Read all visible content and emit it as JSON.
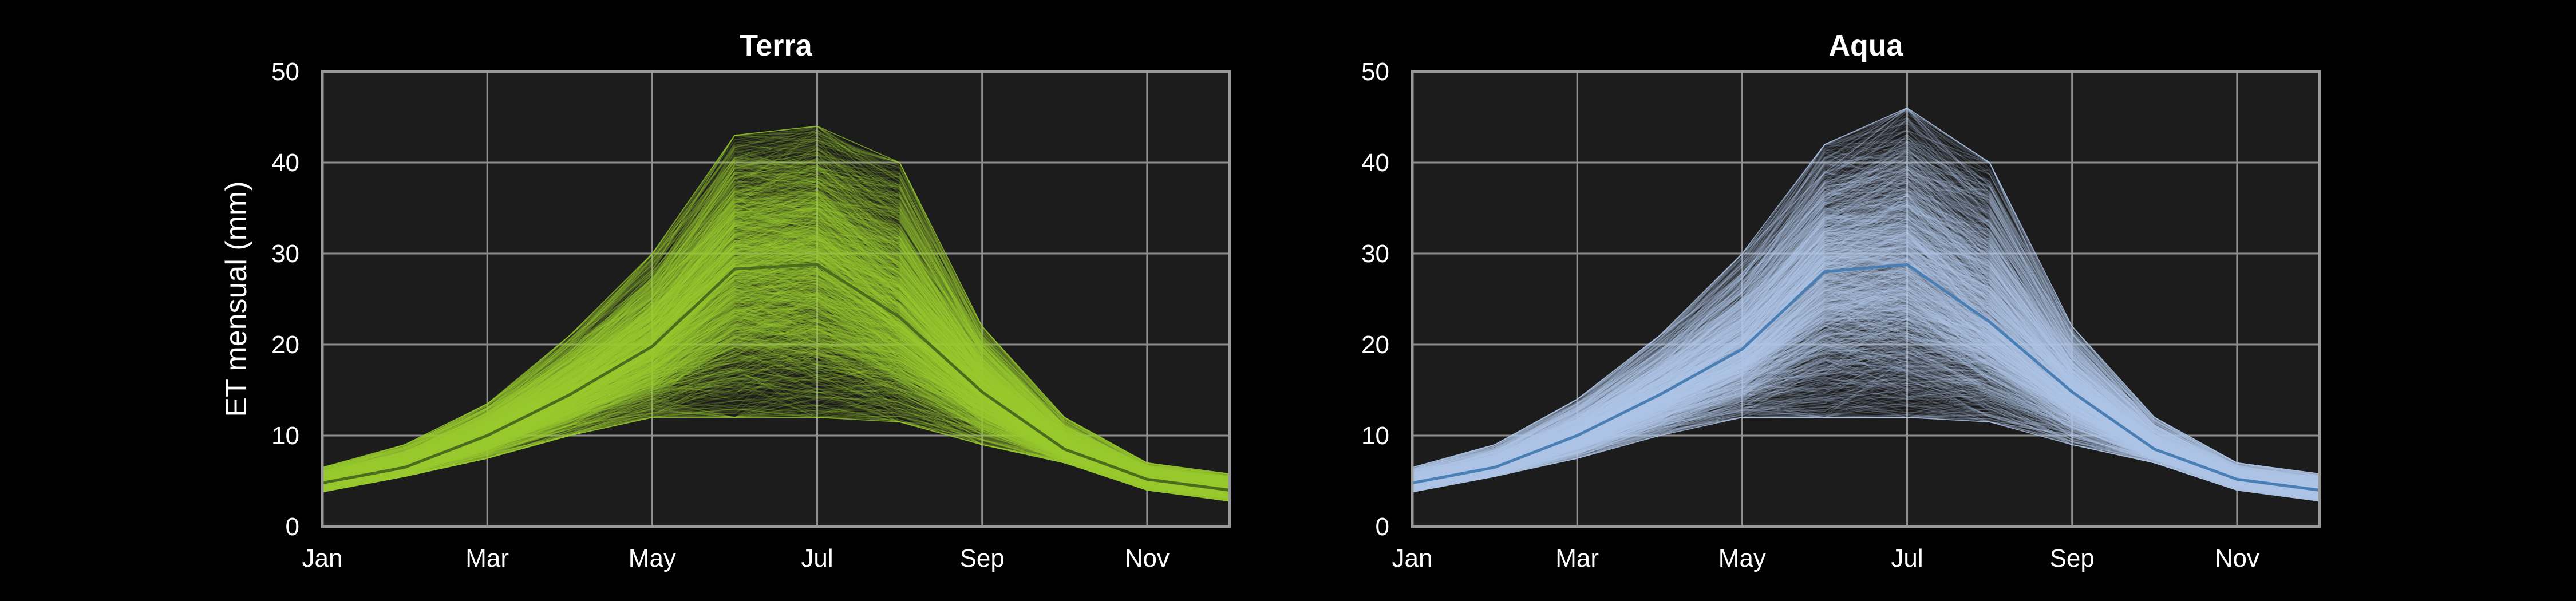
{
  "chart_data": [
    {
      "type": "line",
      "title": "Terra",
      "ylabel": "ET mensual (mm)",
      "xlabel": "",
      "x": [
        1,
        2,
        3,
        4,
        5,
        6,
        7,
        8,
        9,
        10,
        11,
        12
      ],
      "xticks": [
        {
          "x": 1,
          "label": "Jan"
        },
        {
          "x": 3,
          "label": "Mar"
        },
        {
          "x": 5,
          "label": "May"
        },
        {
          "x": 7,
          "label": "Jul"
        },
        {
          "x": 9,
          "label": "Sep"
        },
        {
          "x": 11,
          "label": "Nov"
        }
      ],
      "yticks": [
        0,
        10,
        20,
        30,
        40,
        50
      ],
      "xlim": [
        1,
        12
      ],
      "ylim": [
        0,
        50
      ],
      "grid": true,
      "ensemble_color": "#9acd32",
      "ensemble_members_approx": 1500,
      "ensemble_band": {
        "low": [
          3.8,
          5.5,
          7.5,
          10.0,
          12.0,
          12.0,
          12.0,
          11.5,
          9.0,
          7.0,
          4.0,
          2.8
        ],
        "high": [
          6.5,
          9.0,
          13.5,
          21.0,
          30.0,
          43.0,
          44.0,
          40.0,
          22.0,
          12.0,
          7.0,
          5.8
        ]
      },
      "series": [
        {
          "values": [
            4.8,
            6.5,
            10.0,
            14.5,
            19.8,
            28.3,
            28.8,
            23.0,
            14.8,
            8.5,
            5.2,
            4.0
          ],
          "color": "#4b6b1e"
        }
      ]
    },
    {
      "type": "line",
      "title": "Aqua",
      "ylabel": "",
      "xlabel": "",
      "x": [
        1,
        2,
        3,
        4,
        5,
        6,
        7,
        8,
        9,
        10,
        11,
        12
      ],
      "xticks": [
        {
          "x": 1,
          "label": "Jan"
        },
        {
          "x": 3,
          "label": "Mar"
        },
        {
          "x": 5,
          "label": "May"
        },
        {
          "x": 7,
          "label": "Jul"
        },
        {
          "x": 9,
          "label": "Sep"
        },
        {
          "x": 11,
          "label": "Nov"
        }
      ],
      "yticks": [
        0,
        10,
        20,
        30,
        40,
        50
      ],
      "xlim": [
        1,
        12
      ],
      "ylim": [
        0,
        50
      ],
      "grid": true,
      "ensemble_color": "#b0c8e8",
      "ensemble_members_approx": 1500,
      "ensemble_band": {
        "low": [
          3.8,
          5.5,
          7.5,
          10.0,
          12.0,
          12.0,
          12.0,
          11.5,
          9.0,
          7.0,
          4.0,
          2.8
        ],
        "high": [
          6.5,
          9.0,
          14.0,
          21.0,
          30.0,
          42.0,
          46.0,
          40.0,
          22.0,
          12.0,
          7.0,
          5.8
        ]
      },
      "series": [
        {
          "values": [
            4.8,
            6.5,
            10.0,
            14.5,
            19.5,
            28.0,
            28.8,
            22.5,
            14.8,
            8.5,
            5.2,
            4.0
          ],
          "color": "#4a7fb5"
        }
      ]
    }
  ]
}
